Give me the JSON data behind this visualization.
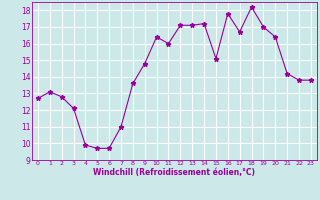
{
  "x": [
    0,
    1,
    2,
    3,
    4,
    5,
    6,
    7,
    8,
    9,
    10,
    11,
    12,
    13,
    14,
    15,
    16,
    17,
    18,
    19,
    20,
    21,
    22,
    23
  ],
  "y": [
    12.7,
    13.1,
    12.8,
    12.1,
    9.9,
    9.7,
    9.7,
    11.0,
    13.6,
    14.8,
    16.4,
    16.0,
    17.1,
    17.1,
    17.2,
    15.1,
    17.8,
    16.7,
    18.2,
    17.0,
    16.4,
    14.2,
    13.8,
    13.8
  ],
  "xlim": [
    -0.5,
    23.5
  ],
  "ylim": [
    9,
    18.5
  ],
  "yticks": [
    9,
    10,
    11,
    12,
    13,
    14,
    15,
    16,
    17,
    18
  ],
  "xticks": [
    0,
    1,
    2,
    3,
    4,
    5,
    6,
    7,
    8,
    9,
    10,
    11,
    12,
    13,
    14,
    15,
    16,
    17,
    18,
    19,
    20,
    21,
    22,
    23
  ],
  "xlabel": "Windchill (Refroidissement éolien,°C)",
  "line_color": "#990099",
  "marker": "*",
  "bg_color": "#cce8e8",
  "grid_color": "#ffffff",
  "label_color": "#990099",
  "tick_color": "#990099"
}
